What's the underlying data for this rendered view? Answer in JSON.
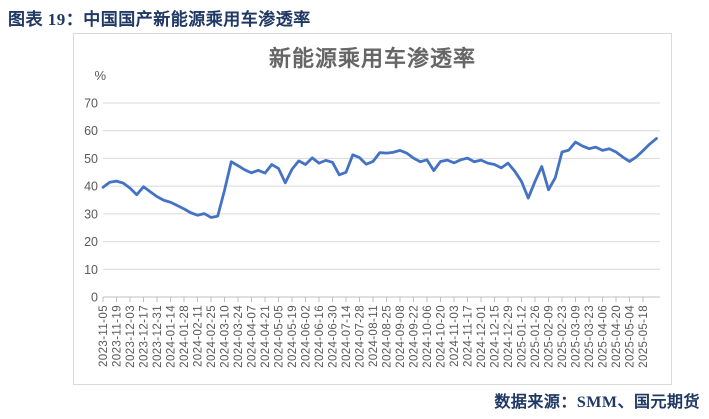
{
  "figure": {
    "caption": "图表 19：中国国产新能源乘用车渗透率"
  },
  "source": {
    "text": "数据来源：SMM、国元期货"
  },
  "colors": {
    "caption_text": "#1F3864",
    "source_text": "#1F3864",
    "chart_title_text": "#666666",
    "axis_text": "#595959",
    "gridline": "#D9D9D9",
    "axis_line": "#BFBFBF",
    "series_line": "#4472C4",
    "chart_border": "#D9D9D9",
    "background": "#FFFFFF"
  },
  "chart_data": {
    "type": "line",
    "title": "新能源乘用车渗透率",
    "unit_label": "%",
    "xlabel": "",
    "ylabel": "",
    "ylim": [
      0,
      70
    ],
    "yticks": [
      0,
      10,
      20,
      30,
      40,
      50,
      60,
      70
    ],
    "grid": true,
    "legend": "none",
    "x": [
      "2023-11-05",
      "2023-11-12",
      "2023-11-19",
      "2023-11-26",
      "2023-12-03",
      "2023-12-10",
      "2023-12-17",
      "2023-12-24",
      "2023-12-31",
      "2024-01-07",
      "2024-01-14",
      "2024-01-21",
      "2024-01-28",
      "2024-02-04",
      "2024-02-11",
      "2024-02-18",
      "2024-02-25",
      "2024-03-03",
      "2024-03-10",
      "2024-03-17",
      "2024-03-24",
      "2024-03-31",
      "2024-04-07",
      "2024-04-14",
      "2024-04-21",
      "2024-04-28",
      "2024-05-05",
      "2024-05-12",
      "2024-05-19",
      "2024-05-26",
      "2024-06-02",
      "2024-06-09",
      "2024-06-16",
      "2024-06-23",
      "2024-06-30",
      "2024-07-07",
      "2024-07-14",
      "2024-07-21",
      "2024-07-28",
      "2024-08-04",
      "2024-08-11",
      "2024-08-18",
      "2024-08-25",
      "2024-09-01",
      "2024-09-08",
      "2024-09-15",
      "2024-09-22",
      "2024-09-29",
      "2024-10-06",
      "2024-10-13",
      "2024-10-20",
      "2024-10-27",
      "2024-11-03",
      "2024-11-10",
      "2024-11-17",
      "2024-11-24",
      "2024-12-01",
      "2024-12-08",
      "2024-12-15",
      "2024-12-22",
      "2024-12-29",
      "2025-01-05",
      "2025-01-12",
      "2025-01-19",
      "2025-01-26",
      "2025-02-02",
      "2025-02-09",
      "2025-02-16",
      "2025-02-23",
      "2025-03-02",
      "2025-03-09",
      "2025-03-16",
      "2025-03-23",
      "2025-03-30",
      "2025-04-06",
      "2025-04-13",
      "2025-04-20",
      "2025-04-27",
      "2025-05-04",
      "2025-05-11",
      "2025-05-18",
      "2025-05-25",
      "2025-06-01"
    ],
    "x_tick_labels": [
      "2023-11-05",
      "2023-11-19",
      "2023-12-03",
      "2023-12-17",
      "2023-12-31",
      "2024-01-14",
      "2024-01-28",
      "2024-02-11",
      "2024-02-25",
      "2024-03-10",
      "2024-03-24",
      "2024-04-07",
      "2024-04-21",
      "2024-05-05",
      "2024-05-19",
      "2024-06-02",
      "2024-06-16",
      "2024-06-30",
      "2024-07-14",
      "2024-07-28",
      "2024-08-11",
      "2024-08-25",
      "2024-09-08",
      "2024-09-22",
      "2024-10-06",
      "2024-10-20",
      "2024-11-03",
      "2024-11-17",
      "2024-12-01",
      "2024-12-15",
      "2024-12-29",
      "2025-01-12",
      "2025-01-26",
      "2025-02-09",
      "2025-02-23",
      "2025-03-09",
      "2025-03-23",
      "2025-04-06",
      "2025-04-20",
      "2025-05-04",
      "2025-05-18"
    ],
    "series": [
      {
        "name": "新能源乘用车渗透率",
        "color": "#4472C4",
        "values": [
          39.6,
          41.4,
          41.8,
          41.1,
          39.3,
          36.9,
          39.8,
          38.0,
          36.2,
          34.9,
          34.2,
          33.0,
          31.8,
          30.4,
          29.5,
          30.1,
          28.7,
          29.2,
          38.5,
          48.8,
          47.4,
          45.9,
          44.8,
          45.7,
          44.7,
          47.8,
          46.4,
          41.2,
          46.1,
          49.1,
          47.8,
          50.2,
          48.3,
          49.3,
          48.6,
          44.1,
          45.0,
          51.3,
          50.3,
          47.9,
          48.9,
          52.1,
          51.9,
          52.2,
          52.9,
          51.9,
          50.1,
          48.8,
          49.5,
          45.6,
          48.9,
          49.4,
          48.4,
          49.5,
          50.1,
          48.8,
          49.4,
          48.3,
          47.8,
          46.6,
          48.3,
          45.4,
          41.7,
          35.7,
          41.7,
          47.1,
          38.7,
          43.0,
          52.3,
          53.0,
          55.9,
          54.5,
          53.5,
          54.1,
          52.9,
          53.5,
          52.3,
          50.5,
          48.9,
          50.5,
          52.8,
          55.2,
          57.2
        ]
      }
    ]
  }
}
